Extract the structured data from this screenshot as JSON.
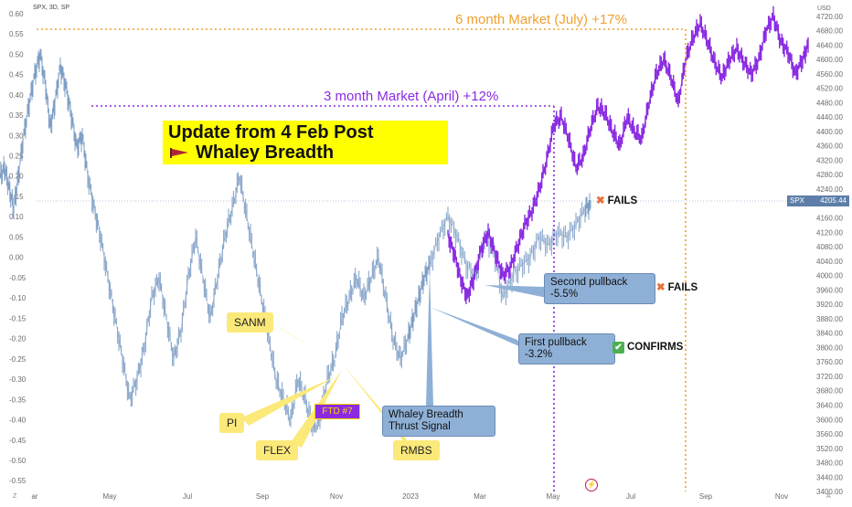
{
  "symbol_line": "SPX, 3D, SP",
  "headline": {
    "line1": "Update from 4 Feb Post",
    "line2": "Whaley Breadth"
  },
  "annotations": {
    "six_month": "6 month Market (July) +17%",
    "three_month": "3 month Market (April) +12%",
    "sanm": "SANM",
    "pi": "PI",
    "flex": "FLEX",
    "rmbs": "RMBS",
    "ftd": "FTD #7",
    "whaley_line1": "Whaley Breadth",
    "whaley_line2": "Thrust Signal",
    "second_pullback_line1": "Second pullback",
    "second_pullback_line2": "-5.5%",
    "first_pullback_line1": "First pullback",
    "first_pullback_line2": "-3.2%"
  },
  "statuses": {
    "top": {
      "icon": "cross-mark-icon",
      "label": "FAILS"
    },
    "second": {
      "icon": "cross-mark-icon",
      "label": "FAILS"
    },
    "first": {
      "icon": "check-box-icon",
      "label": "CONFIRMS"
    }
  },
  "price_tag": {
    "name": "SPX",
    "value": "4205.44"
  },
  "currency": "USD",
  "corners": {
    "bottom_left": "Z",
    "bottom_right": "A"
  },
  "colors": {
    "line1_series": "#7f9fc6",
    "spx_series": "#8a2be2",
    "annotation_orange": "#f0a030",
    "annotation_purple": "#8a2be2",
    "callout_yellow": "#fbe97a",
    "callout_blue": "#8fb0d6",
    "headline_yellow": "#ffff00"
  },
  "chart_data": {
    "type": "line",
    "x_tick_labels": [
      "ar",
      "May",
      "Jul",
      "Sep",
      "Nov",
      "2023",
      "Mar",
      "May",
      "Jul",
      "Sep",
      "Nov"
    ],
    "left_axis": {
      "ticks": [
        0.6,
        0.55,
        0.5,
        0.45,
        0.4,
        0.35,
        0.3,
        0.25,
        0.2,
        0.15,
        0.1,
        0.05,
        0.0,
        -0.05,
        -0.1,
        -0.15,
        -0.2,
        -0.25,
        -0.3,
        -0.35,
        -0.4,
        -0.45,
        -0.5,
        -0.55
      ],
      "tick_labels": [
        "0.60",
        "0.55",
        "0.50",
        "0.45",
        "0.40",
        "0.35",
        "0.30",
        "0.25",
        "0.20",
        "0.15",
        "0.10",
        "0.05",
        "0.00",
        "-0.05",
        "-0.10",
        "-0.15",
        "-0.20",
        "-0.25",
        "-0.30",
        "-0.35",
        "-0.40",
        "-0.45",
        "-0.50",
        "-0.55"
      ],
      "range": [
        -0.59,
        0.62
      ]
    },
    "right_axis": {
      "ticks": [
        4720,
        4680,
        4640,
        4600,
        4560,
        4520,
        4480,
        4440,
        4400,
        4360,
        4320,
        4280,
        4240,
        4200,
        4160,
        4120,
        4080,
        4040,
        4000,
        3960,
        3920,
        3880,
        3840,
        3800,
        3760,
        3720,
        3680,
        3640,
        3600,
        3560,
        3520,
        3480,
        3440,
        3400
      ],
      "tick_labels": [
        "4720.00",
        "4680.00",
        "4640.00",
        "4600.00",
        "4560.00",
        "4520.00",
        "4480.00",
        "4440.00",
        "4400.00",
        "4360.00",
        "4320.00",
        "4280.00",
        "4240.00",
        "4200.00",
        "4160.00",
        "4120.00",
        "4080.00",
        "4040.00",
        "4000.00",
        "3960.00",
        "3920.00",
        "3880.00",
        "3840.00",
        "3800.00",
        "3760.00",
        "3720.00",
        "3680.00",
        "3640.00",
        "3600.00",
        "3560.00",
        "3520.00",
        "3480.00",
        "3440.00",
        "3400.00"
      ],
      "range": [
        3385,
        4750
      ]
    },
    "series": [
      {
        "axis": "left",
        "x": [
          0,
          5,
          10,
          15,
          20,
          26,
          32,
          38,
          44,
          50,
          55,
          60,
          66,
          72,
          78,
          84,
          90,
          96,
          103,
          110,
          118,
          126,
          134,
          142,
          150,
          158,
          166,
          174,
          182,
          190,
          198,
          206,
          214,
          222,
          230,
          238,
          246,
          254,
          262,
          270,
          278,
          286,
          294,
          302,
          310,
          318,
          326,
          334,
          342,
          350,
          358,
          366,
          374,
          382,
          390,
          398,
          406,
          414,
          422,
          430,
          438,
          446,
          452,
          458,
          464,
          470
        ],
        "y": [
          0.2,
          0.22,
          0.17,
          0.12,
          0.2,
          0.3,
          0.38,
          0.45,
          0.5,
          0.42,
          0.32,
          0.38,
          0.47,
          0.42,
          0.35,
          0.27,
          0.3,
          0.2,
          0.12,
          0.05,
          -0.05,
          -0.15,
          -0.25,
          -0.35,
          -0.3,
          -0.22,
          -0.1,
          -0.05,
          -0.15,
          -0.25,
          -0.18,
          -0.05,
          0.05,
          -0.05,
          -0.15,
          -0.05,
          0.05,
          0.12,
          0.2,
          0.1,
          0.0,
          -0.1,
          -0.2,
          -0.3,
          -0.35,
          -0.4,
          -0.3,
          -0.35,
          -0.42,
          -0.4,
          -0.3,
          -0.25,
          -0.15,
          -0.1,
          -0.05,
          -0.1,
          -0.05,
          0.0,
          -0.1,
          -0.2,
          -0.25,
          -0.2,
          -0.15,
          -0.1,
          -0.05,
          -0.02
        ]
      },
      {
        "axis": "left",
        "x": [
          470,
          480,
          490,
          500,
          510,
          520,
          530,
          540,
          550,
          560,
          570,
          580,
          590,
          600,
          610,
          620,
          630,
          640,
          646
        ],
        "y": [
          -0.02,
          0.05,
          0.1,
          0.05,
          -0.02,
          -0.05,
          0.05,
          0.02,
          -0.1,
          -0.05,
          -0.02,
          0.0,
          0.05,
          0.03,
          0.06,
          0.05,
          0.08,
          0.12,
          0.13
        ]
      },
      {
        "name": "SPX",
        "axis": "right",
        "x": [
          490,
          497,
          504,
          511,
          518,
          526,
          534,
          542,
          550,
          558,
          566,
          574,
          582,
          590,
          598,
          606,
          614,
          622,
          630,
          638,
          646,
          654,
          662,
          670,
          678,
          686,
          694,
          702,
          710,
          718,
          726,
          734,
          742,
          750,
          758,
          766,
          774,
          782,
          790,
          798,
          806,
          814,
          822,
          830,
          838,
          846,
          854,
          862,
          870,
          878,
          884
        ],
        "y": [
          4110,
          4060,
          3990,
          3940,
          3990,
          4070,
          4120,
          4060,
          4000,
          4020,
          4080,
          4140,
          4180,
          4240,
          4320,
          4420,
          4440,
          4380,
          4300,
          4330,
          4410,
          4470,
          4450,
          4400,
          4360,
          4440,
          4400,
          4380,
          4480,
          4560,
          4600,
          4550,
          4480,
          4600,
          4660,
          4700,
          4650,
          4590,
          4550,
          4600,
          4630,
          4590,
          4560,
          4600,
          4680,
          4720,
          4650,
          4620,
          4560,
          4600,
          4640
        ]
      }
    ]
  }
}
